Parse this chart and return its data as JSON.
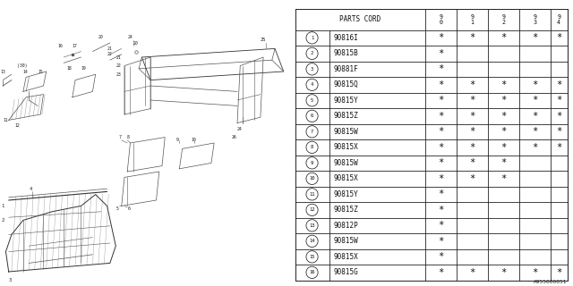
{
  "background_color": "#ffffff",
  "part_number_label": "A955000051",
  "table": {
    "rows": [
      {
        "num": 1,
        "part": "90816I",
        "cols": [
          "*",
          "*",
          "*",
          "*",
          "*"
        ]
      },
      {
        "num": 2,
        "part": "90815B",
        "cols": [
          "*",
          "",
          "",
          "",
          ""
        ]
      },
      {
        "num": 3,
        "part": "90881F",
        "cols": [
          "*",
          "",
          "",
          "",
          ""
        ]
      },
      {
        "num": 4,
        "part": "90815Q",
        "cols": [
          "*",
          "*",
          "*",
          "*",
          "*"
        ]
      },
      {
        "num": 5,
        "part": "90815Y",
        "cols": [
          "*",
          "*",
          "*",
          "*",
          "*"
        ]
      },
      {
        "num": 6,
        "part": "90815Z",
        "cols": [
          "*",
          "*",
          "*",
          "*",
          "*"
        ]
      },
      {
        "num": 7,
        "part": "90815W",
        "cols": [
          "*",
          "*",
          "*",
          "*",
          "*"
        ]
      },
      {
        "num": 8,
        "part": "90815X",
        "cols": [
          "*",
          "*",
          "*",
          "*",
          "*"
        ]
      },
      {
        "num": 9,
        "part": "90815W",
        "cols": [
          "*",
          "*",
          "*",
          "",
          ""
        ]
      },
      {
        "num": 10,
        "part": "90815X",
        "cols": [
          "*",
          "*",
          "*",
          "",
          ""
        ]
      },
      {
        "num": 11,
        "part": "90815Y",
        "cols": [
          "*",
          "",
          "",
          "",
          ""
        ]
      },
      {
        "num": 12,
        "part": "90815Z",
        "cols": [
          "*",
          "",
          "",
          "",
          ""
        ]
      },
      {
        "num": 13,
        "part": "90812P",
        "cols": [
          "*",
          "",
          "",
          "",
          ""
        ]
      },
      {
        "num": 14,
        "part": "90815W",
        "cols": [
          "*",
          "",
          "",
          "",
          ""
        ]
      },
      {
        "num": 15,
        "part": "90815X",
        "cols": [
          "*",
          "",
          "",
          "",
          ""
        ]
      },
      {
        "num": 16,
        "part": "90815G",
        "cols": [
          "*",
          "*",
          "*",
          "*",
          "*"
        ]
      }
    ]
  }
}
